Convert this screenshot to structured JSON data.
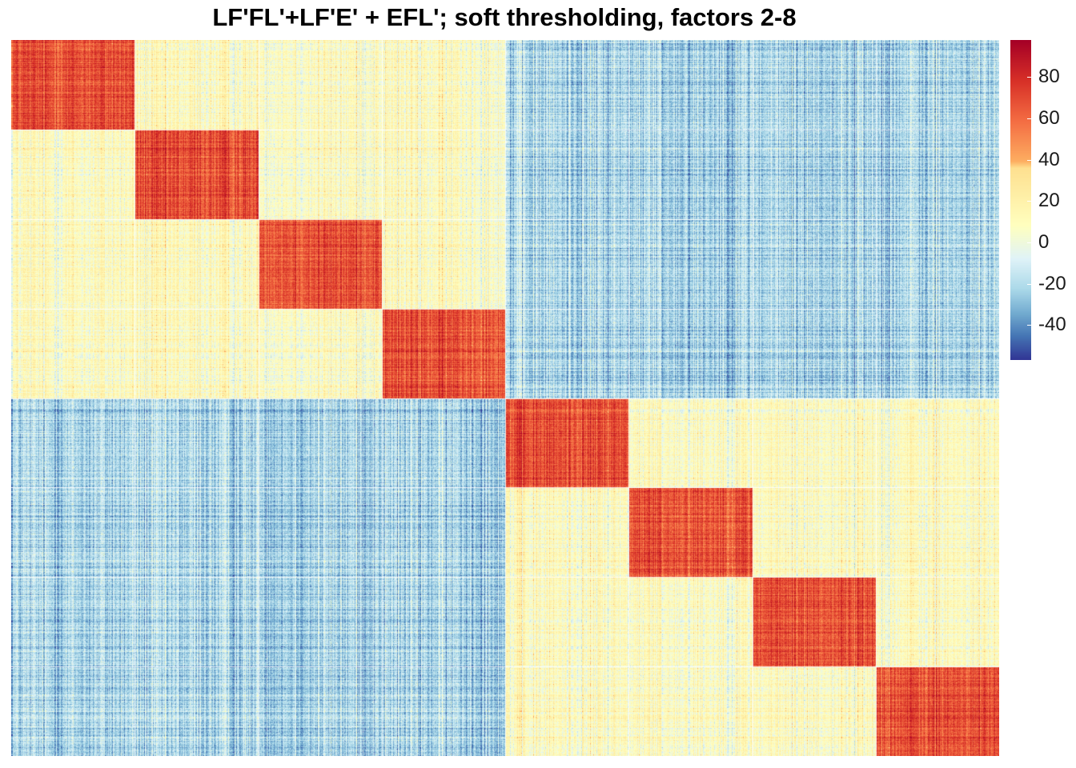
{
  "chart_data": {
    "type": "heatmap",
    "title": "LF'FL'+LF'E' + EFL'; soft thresholding, factors 2-8",
    "n_blocks": 8,
    "block_groups": [
      [
        0,
        1,
        2,
        3
      ],
      [
        4,
        5,
        6,
        7
      ]
    ],
    "block_mean_values": {
      "diagonal": 68,
      "same_group_off_diagonal": 10,
      "cross_group": -22
    },
    "colorbar": {
      "min": -57,
      "max": 98,
      "ticks": [
        80,
        60,
        40,
        20,
        0,
        -20,
        -40
      ],
      "tick_labels": [
        "80",
        "60",
        "40",
        "20",
        "0",
        "-20",
        "-40"
      ],
      "colors": [
        "#313695",
        "#4575b4",
        "#74add1",
        "#abd9e9",
        "#e0f3f8",
        "#ffffbf",
        "#fee090",
        "#fdae61",
        "#f46d43",
        "#d73027",
        "#a50026"
      ]
    },
    "grid": false,
    "legend": "right"
  }
}
